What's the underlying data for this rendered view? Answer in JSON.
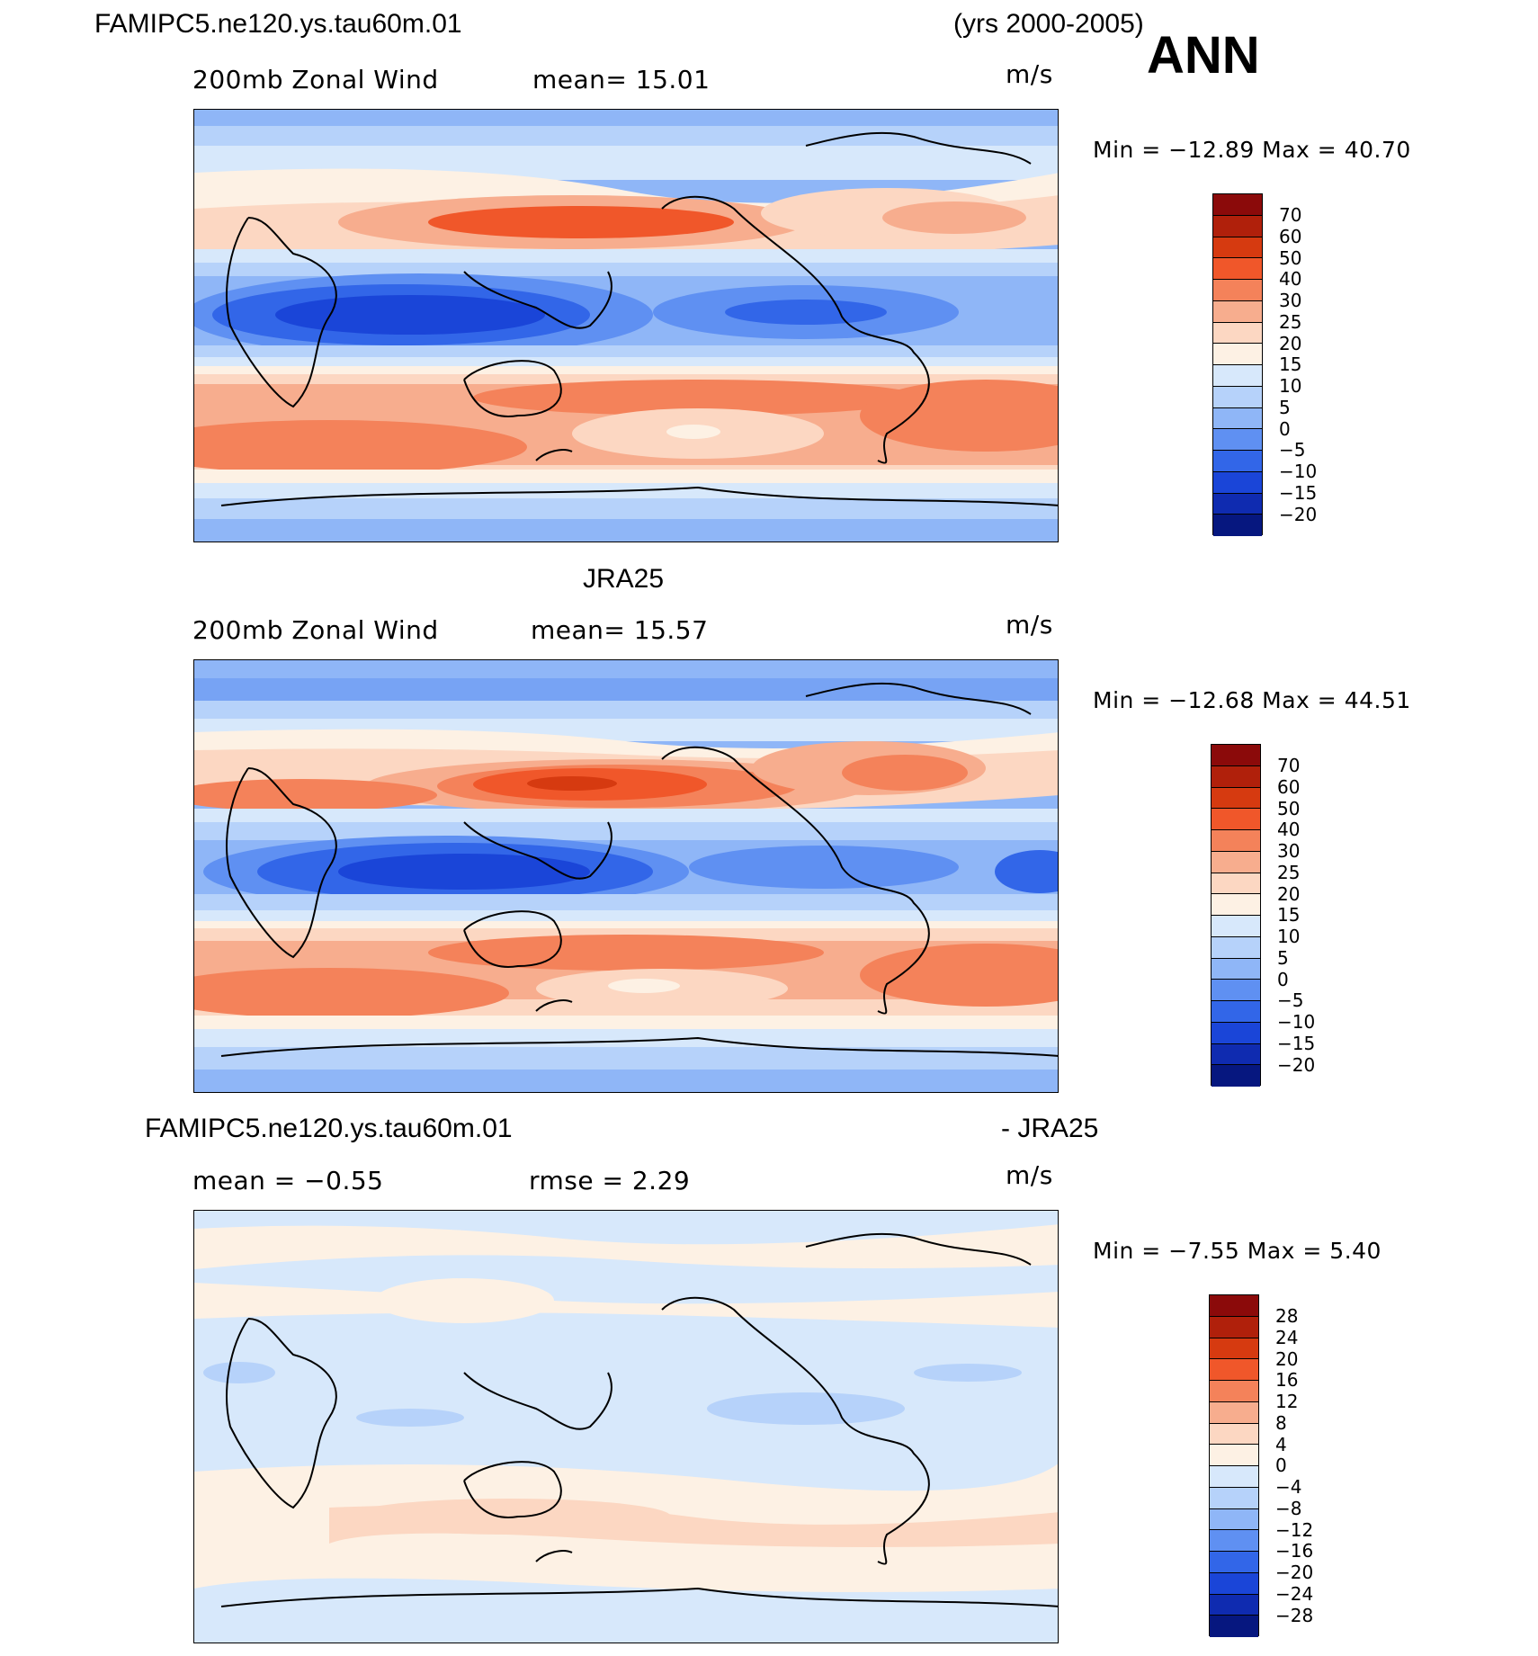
{
  "header": {
    "case_name": "FAMIPC5.ne120.ys.tau60m.01",
    "years": "(yrs 2000-2005)",
    "season": "ANN"
  },
  "panels": [
    {
      "id": "model",
      "field": "200mb Zonal Wind",
      "stat_text": "mean=   15.01",
      "units": "m/s",
      "minmax": "Min = −12.89  Max =   40.70",
      "title": "",
      "colorbar_labels": [
        "70",
        "60",
        "50",
        "40",
        "30",
        "25",
        "20",
        "15",
        "10",
        "5",
        "0",
        "−5",
        "−10",
        "−15",
        "−20"
      ]
    },
    {
      "id": "obs",
      "title": "JRA25",
      "field": "200mb Zonal Wind",
      "stat_text": "mean=   15.57",
      "units": "m/s",
      "minmax": "Min = −12.68  Max =   44.51",
      "colorbar_labels": [
        "70",
        "60",
        "50",
        "40",
        "30",
        "25",
        "20",
        "15",
        "10",
        "5",
        "0",
        "−5",
        "−10",
        "−15",
        "−20"
      ]
    },
    {
      "id": "diff",
      "title_left": "FAMIPC5.ne120.ys.tau60m.01",
      "title_right": "- JRA25",
      "stat_left": "mean =   −0.55",
      "stat_right": "rmse =    2.29",
      "units": "m/s",
      "minmax": "Min =  −7.55  Max =    5.40",
      "colorbar_labels": [
        "28",
        "24",
        "20",
        "16",
        "12",
        "8",
        "4",
        "0",
        "−4",
        "−8",
        "−12",
        "−16",
        "−20",
        "−24",
        "−28"
      ]
    }
  ],
  "colors": {
    "wind_scale": [
      "#8b0a0a",
      "#b0200b",
      "#d63a10",
      "#f0572a",
      "#f4825a",
      "#f7ad8e",
      "#fcd7c2",
      "#fdf1e4",
      "#d7e8fb",
      "#b6d2fa",
      "#8fb6f7",
      "#5f90f2",
      "#3266e8",
      "#1a45d8",
      "#0f2bb0",
      "#06177f"
    ],
    "diff_scale": [
      "#8b0a0a",
      "#b0200b",
      "#d63a10",
      "#f0572a",
      "#f4825a",
      "#f7ad8e",
      "#fcd7c2",
      "#fdf1e4",
      "#d7e8fb",
      "#b6d2fa",
      "#8fb6f7",
      "#5f90f2",
      "#3266e8",
      "#1a45d8",
      "#0f2bb0",
      "#06177f"
    ]
  }
}
